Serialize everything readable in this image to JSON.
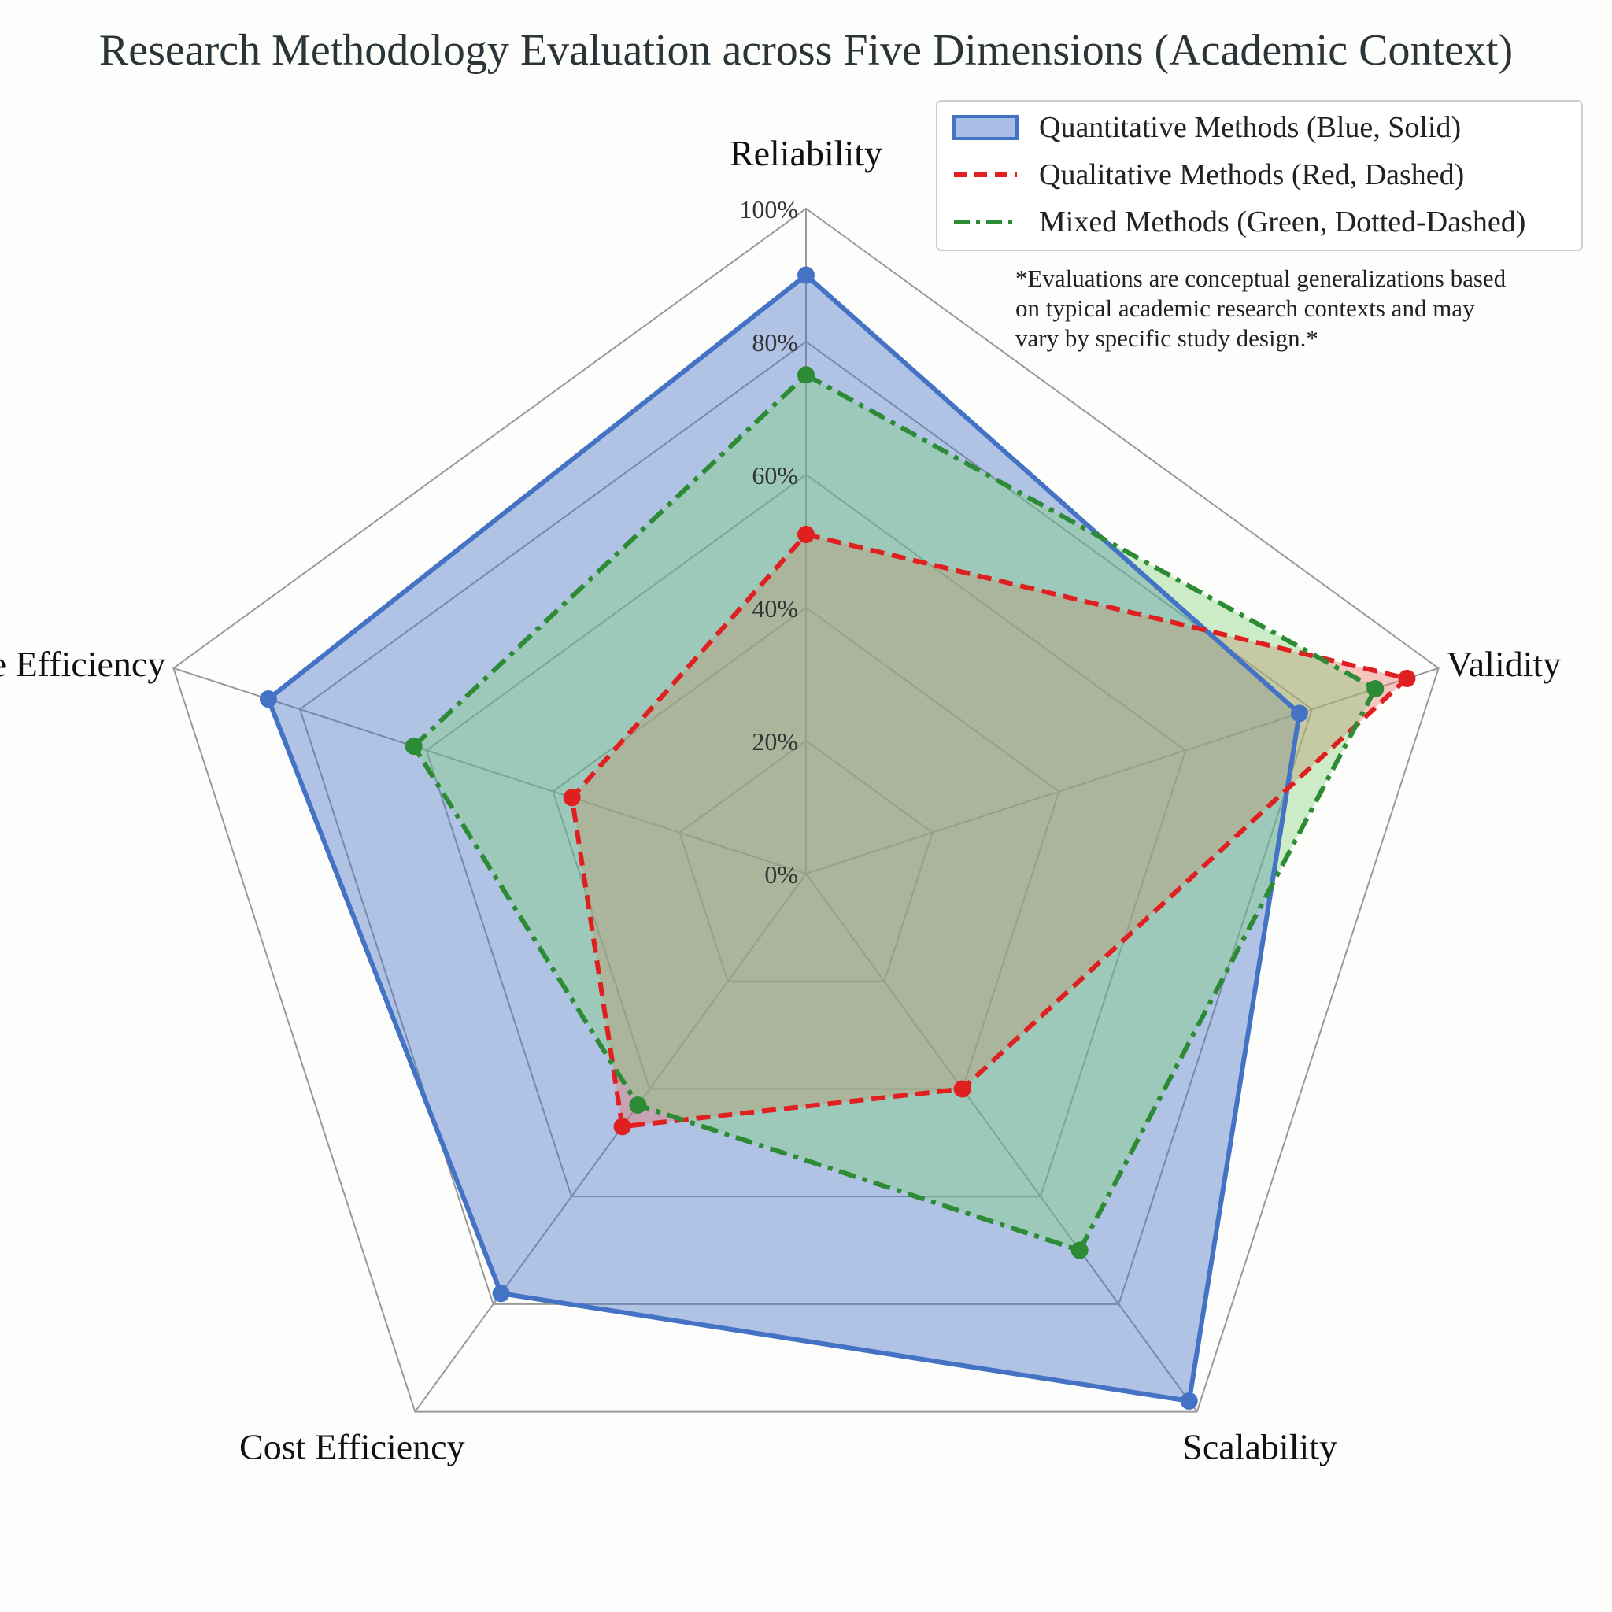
{
  "chart_data": {
    "type": "radar",
    "title": "Research Methodology Evaluation across Five Dimensions (Academic Context)",
    "axes": [
      "Reliability",
      "Validity",
      "Scalability",
      "Cost Efficiency",
      "Time Efficiency"
    ],
    "rlim": [
      0,
      100
    ],
    "tick_values": [
      0,
      20,
      40,
      60,
      80,
      100
    ],
    "tick_labels": [
      "0%",
      "20%",
      "40%",
      "60%",
      "80%",
      "100%"
    ],
    "grid": true,
    "legend_position": "top-right",
    "series": [
      {
        "name": "Quantitative Methods (Blue, Solid)",
        "values": [
          90,
          78,
          98,
          78,
          85
        ],
        "color": "#4472c4",
        "fill": "#4472c4",
        "style": "solid"
      },
      {
        "name": "Qualitative Methods (Red, Dashed)",
        "values": [
          51,
          95,
          40,
          47,
          37
        ],
        "color": "#e02020",
        "fill": "#e8706a",
        "style": "dashed"
      },
      {
        "name": "Mixed Methods (Green, Dotted-Dashed)",
        "values": [
          75,
          90,
          70,
          43,
          62
        ],
        "color": "#2e8b35",
        "fill": "#7fd27a",
        "style": "dashdot"
      }
    ],
    "annotation": [
      "*Evaluations are conceptual generalizations based",
      "on typical academic research contexts and may",
      "vary by specific study design.*"
    ]
  }
}
